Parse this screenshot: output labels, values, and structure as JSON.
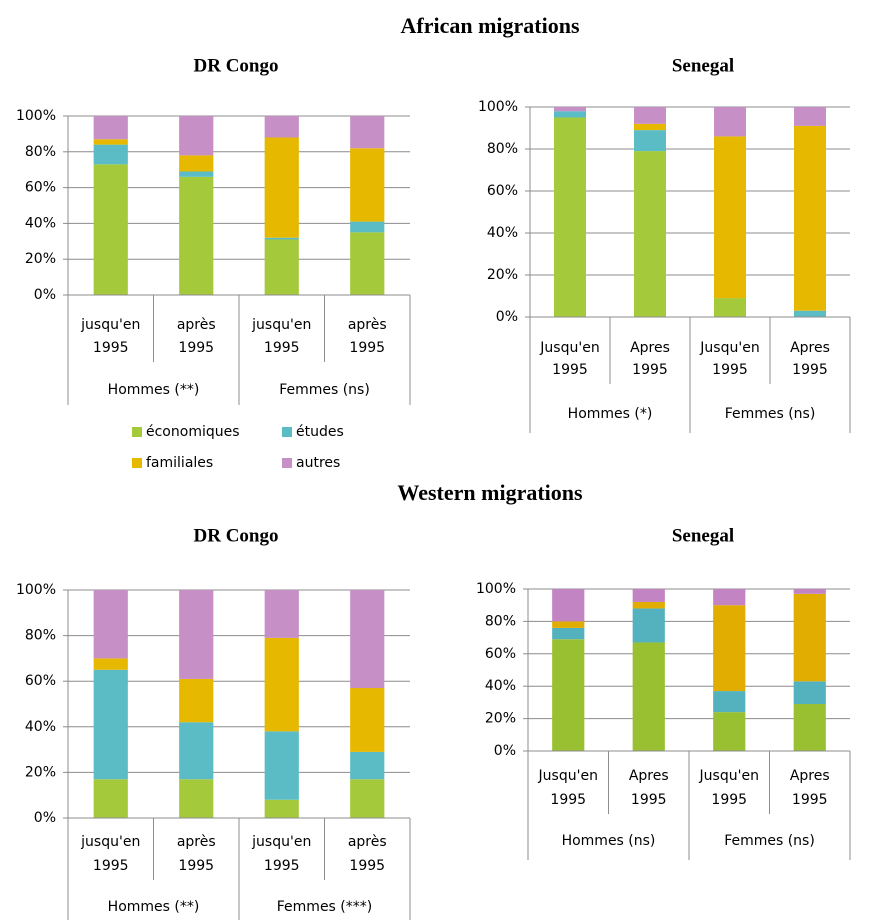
{
  "sections": [
    {
      "title": "African migrations"
    },
    {
      "title": "Western migrations"
    }
  ],
  "chart_data": [
    {
      "type": "bar",
      "stacked": true,
      "title": "DR Congo",
      "categories": [
        [
          "jusqu'en",
          "1995"
        ],
        [
          "après",
          "1995"
        ],
        [
          "jusqu'en",
          "1995"
        ],
        [
          "après",
          "1995"
        ]
      ],
      "groups": [
        "Hommes (**)",
        "Femmes (ns)"
      ],
      "ylim": [
        0,
        100
      ],
      "yticks": [
        {
          "value": 0,
          "label": "0%"
        },
        {
          "value": 20,
          "label": "20%"
        },
        {
          "value": 40,
          "label": "40%"
        },
        {
          "value": 60,
          "label": "60%"
        },
        {
          "value": 80,
          "label": "80%"
        },
        {
          "value": 100,
          "label": "100%"
        }
      ],
      "grid": true,
      "legend": "bottom",
      "series": [
        {
          "name": "économiques",
          "color": "#a4c93a",
          "values": [
            73,
            66,
            31,
            35
          ]
        },
        {
          "name": "études",
          "color": "#5bbcc6",
          "values": [
            11,
            3,
            1,
            6
          ]
        },
        {
          "name": "familiales",
          "color": "#e6b800",
          "values": [
            3,
            9,
            56,
            41
          ]
        },
        {
          "name": "autres",
          "color": "#c68fc6",
          "values": [
            13,
            22,
            12,
            18
          ]
        }
      ]
    },
    {
      "type": "bar",
      "stacked": true,
      "title": "Senegal",
      "categories": [
        [
          "Jusqu'en",
          "1995"
        ],
        [
          "Apres",
          "1995"
        ],
        [
          "Jusqu'en",
          "1995"
        ],
        [
          "Apres",
          "1995"
        ]
      ],
      "groups": [
        "Hommes (*)",
        "Femmes (ns)"
      ],
      "ylim": [
        0,
        100
      ],
      "yticks": [
        {
          "value": 0,
          "label": "0%"
        },
        {
          "value": 20,
          "label": "20%"
        },
        {
          "value": 40,
          "label": "40%"
        },
        {
          "value": 60,
          "label": "60%"
        },
        {
          "value": 80,
          "label": "80%"
        },
        {
          "value": 100,
          "label": "100%"
        }
      ],
      "grid": true,
      "series": [
        {
          "color": "#a4c93a",
          "values": [
            95,
            79,
            9,
            0
          ]
        },
        {
          "color": "#5bbcc6",
          "values": [
            3,
            10,
            0,
            3
          ]
        },
        {
          "color": "#e6b800",
          "values": [
            0,
            3,
            77,
            88
          ]
        },
        {
          "color": "#c68fc6",
          "values": [
            2,
            8,
            14,
            9
          ]
        }
      ]
    },
    {
      "type": "bar",
      "stacked": true,
      "title": "DR Congo",
      "categories": [
        [
          "jusqu'en",
          "1995"
        ],
        [
          "après",
          "1995"
        ],
        [
          "jusqu'en",
          "1995"
        ],
        [
          "après",
          "1995"
        ]
      ],
      "groups": [
        "Hommes (**)",
        "Femmes (***)"
      ],
      "ylim": [
        0,
        100
      ],
      "yticks": [
        {
          "value": 0,
          "label": "0%"
        },
        {
          "value": 20,
          "label": "20%"
        },
        {
          "value": 40,
          "label": "40%"
        },
        {
          "value": 60,
          "label": "60%"
        },
        {
          "value": 80,
          "label": "80%"
        },
        {
          "value": 100,
          "label": "100%"
        }
      ],
      "grid": true,
      "series": [
        {
          "color": "#a4c93a",
          "values": [
            17,
            17,
            8,
            17
          ]
        },
        {
          "color": "#5bbcc6",
          "values": [
            48,
            25,
            30,
            12
          ]
        },
        {
          "color": "#e6b800",
          "values": [
            5,
            19,
            41,
            28
          ]
        },
        {
          "color": "#c68fc6",
          "values": [
            30,
            39,
            21,
            43
          ]
        }
      ]
    },
    {
      "type": "bar",
      "stacked": true,
      "title": "Senegal",
      "categories": [
        [
          "Jusqu'en",
          "1995"
        ],
        [
          "Apres",
          "1995"
        ],
        [
          "Jusqu'en",
          "1995"
        ],
        [
          "Apres",
          "1995"
        ]
      ],
      "groups": [
        "Hommes (ns)",
        "Femmes (ns)"
      ],
      "ylim": [
        0,
        100
      ],
      "yticks": [
        {
          "value": 0,
          "label": "0%"
        },
        {
          "value": 20,
          "label": "20%"
        },
        {
          "value": 40,
          "label": "40%"
        },
        {
          "value": 60,
          "label": "60%"
        },
        {
          "value": 80,
          "label": "80%"
        },
        {
          "value": 100,
          "label": "100%"
        }
      ],
      "grid": true,
      "series": [
        {
          "color": "#99c030",
          "values": [
            69,
            67,
            24,
            29
          ]
        },
        {
          "color": "#54b2be",
          "values": [
            7,
            21,
            13,
            14
          ]
        },
        {
          "color": "#e0ad00",
          "values": [
            4,
            4,
            53,
            54
          ]
        },
        {
          "color": "#c384c4",
          "values": [
            20,
            8,
            10,
            3
          ]
        }
      ]
    }
  ]
}
